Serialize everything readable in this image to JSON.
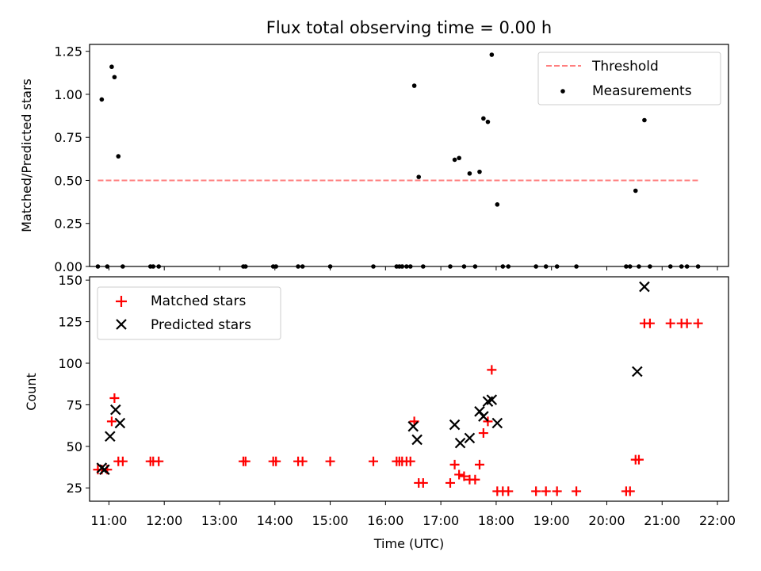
{
  "chart_data": [
    {
      "type": "scatter",
      "title": "Flux total observing time = 0.00 h",
      "xlabel": "",
      "ylabel": "Matched/Predicted stars",
      "xlim": [
        10.65,
        22.2
      ],
      "ylim": [
        0,
        1.29
      ],
      "yticks": [
        0,
        0.25,
        0.5,
        0.75,
        1.0,
        1.25
      ],
      "ytick_labels": [
        "0.00",
        "0.25",
        "0.50",
        "0.75",
        "1.00",
        "1.25"
      ],
      "legend_position": "upper-right",
      "grid": false,
      "series": [
        {
          "name": "Threshold",
          "kind": "line",
          "style": "dashed",
          "color": "#ff7f7f",
          "x": [
            10.8,
            21.65
          ],
          "y": [
            0.5,
            0.5
          ]
        },
        {
          "name": "Measurements",
          "kind": "scatter",
          "marker": "dot",
          "color": "#000000",
          "x": [
            10.8,
            10.87,
            10.97,
            11.05,
            11.1,
            11.17,
            11.25,
            11.75,
            11.8,
            11.9,
            13.43,
            13.47,
            13.97,
            14.02,
            14.42,
            14.5,
            15.0,
            15.78,
            16.2,
            16.25,
            16.3,
            16.38,
            16.45,
            16.52,
            16.6,
            16.68,
            17.17,
            17.25,
            17.33,
            17.42,
            17.52,
            17.62,
            17.7,
            17.77,
            17.85,
            17.92,
            18.02,
            18.12,
            18.22,
            18.72,
            18.9,
            19.1,
            19.45,
            20.35,
            20.42,
            20.52,
            20.58,
            20.68,
            20.78,
            21.15,
            21.35,
            21.45,
            21.65
          ],
          "y": [
            0,
            0.97,
            0,
            1.16,
            1.1,
            0.64,
            0,
            0,
            0,
            0,
            0,
            0,
            0,
            0,
            0,
            0,
            0,
            0,
            0,
            0,
            0,
            0,
            0,
            1.05,
            0.52,
            0,
            0,
            0.62,
            0.63,
            0,
            0.54,
            0,
            0.55,
            0.86,
            0.84,
            1.23,
            0.36,
            0,
            0,
            0,
            0,
            0,
            0,
            0,
            0,
            0.44,
            0,
            0.85,
            0,
            0,
            0,
            0,
            0
          ]
        }
      ]
    },
    {
      "type": "scatter",
      "title": "",
      "xlabel": "Time (UTC)",
      "ylabel": "Count",
      "xlim": [
        10.65,
        22.2
      ],
      "ylim": [
        17,
        152
      ],
      "xticks": [
        11,
        12,
        13,
        14,
        15,
        16,
        17,
        18,
        19,
        20,
        21,
        22
      ],
      "xtick_labels": [
        "11:00",
        "12:00",
        "13:00",
        "14:00",
        "15:00",
        "16:00",
        "17:00",
        "18:00",
        "19:00",
        "20:00",
        "21:00",
        "22:00"
      ],
      "yticks": [
        25,
        50,
        75,
        100,
        125,
        150
      ],
      "ytick_labels": [
        "25",
        "50",
        "75",
        "100",
        "125",
        "150"
      ],
      "legend_position": "upper-left",
      "grid": false,
      "series": [
        {
          "name": "Matched stars",
          "kind": "scatter",
          "marker": "plus",
          "color": "#ff0000",
          "x": [
            10.8,
            10.87,
            10.97,
            11.05,
            11.1,
            11.17,
            11.25,
            11.75,
            11.8,
            11.9,
            13.43,
            13.47,
            13.97,
            14.02,
            14.42,
            14.5,
            15.0,
            15.78,
            16.2,
            16.25,
            16.3,
            16.38,
            16.45,
            16.52,
            16.6,
            16.68,
            17.17,
            17.25,
            17.33,
            17.42,
            17.52,
            17.62,
            17.7,
            17.77,
            17.85,
            17.92,
            18.02,
            18.12,
            18.22,
            18.72,
            18.9,
            19.1,
            19.45,
            20.35,
            20.42,
            20.52,
            20.58,
            20.68,
            20.78,
            21.15,
            21.35,
            21.45,
            21.65
          ],
          "y": [
            36,
            36,
            36,
            65,
            79,
            41,
            41,
            41,
            41,
            41,
            41,
            41,
            41,
            41,
            41,
            41,
            41,
            41,
            41,
            41,
            41,
            41,
            41,
            65,
            28,
            28,
            28,
            39,
            33,
            32,
            30,
            30,
            39,
            58,
            65,
            96,
            23,
            23,
            23,
            23,
            23,
            23,
            23,
            23,
            23,
            42,
            42,
            124,
            124,
            124,
            124,
            124,
            124
          ]
        },
        {
          "name": "Predicted stars",
          "kind": "scatter",
          "marker": "x",
          "color": "#000000",
          "x": [
            10.87,
            10.92,
            11.02,
            11.12,
            11.2,
            16.5,
            16.57,
            17.25,
            17.35,
            17.52,
            17.7,
            17.77,
            17.85,
            17.92,
            18.02,
            20.55,
            20.68
          ],
          "y": [
            37,
            36,
            56,
            72,
            64,
            62,
            54,
            63,
            52,
            55,
            71,
            68,
            77,
            78,
            64,
            95,
            146
          ]
        }
      ]
    }
  ]
}
